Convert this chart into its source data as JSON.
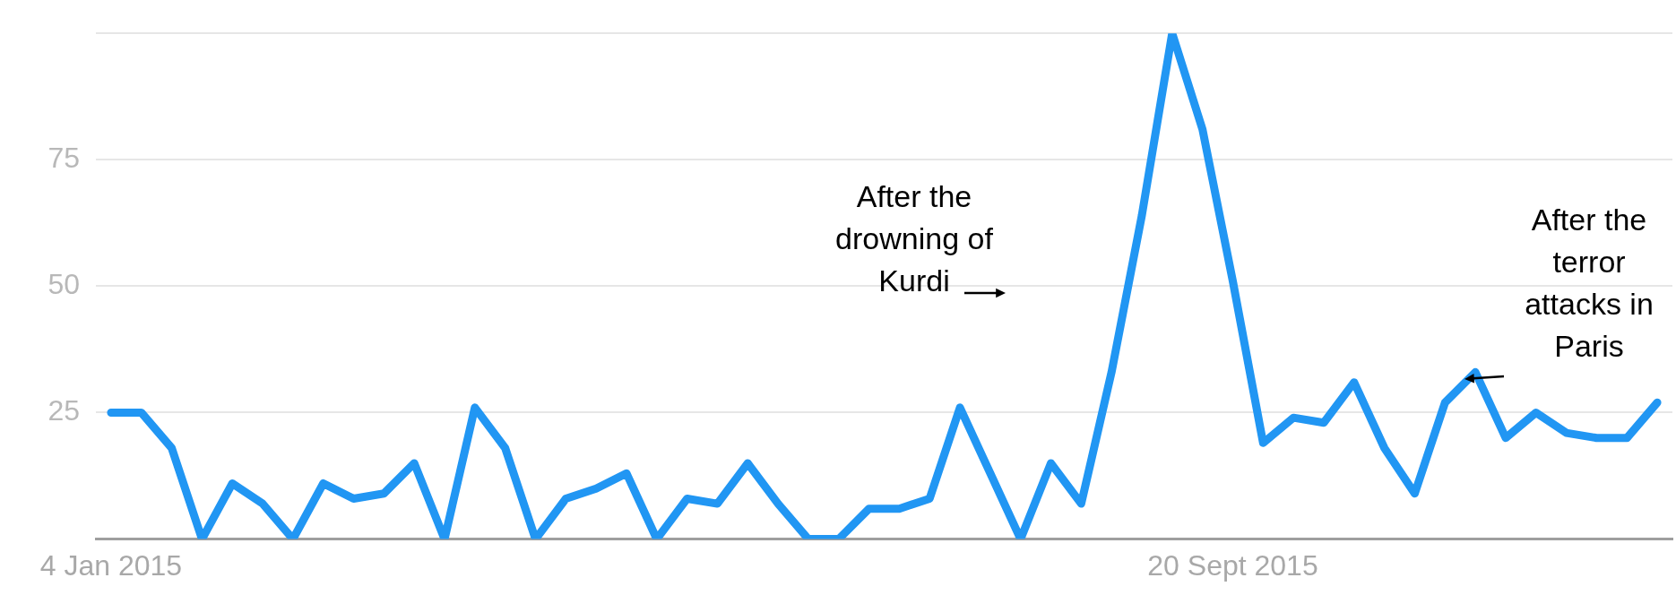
{
  "chart_data": {
    "type": "line",
    "categories": [
      "4 Jan 2015",
      null,
      null,
      null,
      null,
      null,
      null,
      null,
      null,
      null,
      null,
      null,
      null,
      null,
      null,
      null,
      null,
      null,
      null,
      null,
      null,
      null,
      null,
      null,
      null,
      null,
      null,
      null,
      null,
      null,
      null,
      null,
      null,
      null,
      null,
      null,
      null,
      "20 Sept 2015",
      null,
      null,
      null,
      null,
      null,
      null,
      null,
      null,
      null,
      null,
      null,
      null,
      null,
      null
    ],
    "values": [
      25,
      25,
      18,
      0,
      11,
      7,
      0,
      11,
      8,
      9,
      15,
      0,
      26,
      18,
      0,
      8,
      10,
      13,
      0,
      8,
      7,
      15,
      7,
      0,
      0,
      6,
      6,
      8,
      26,
      13,
      0,
      15,
      7,
      33,
      64,
      100,
      81,
      51,
      19,
      24,
      23,
      31,
      18,
      9,
      27,
      33,
      20,
      25,
      21,
      20,
      20,
      27
    ],
    "color": "#2196f3",
    "ylim": [
      0,
      100
    ],
    "yticks": [
      {
        "value": 0,
        "label": null
      },
      25,
      50,
      75,
      {
        "value": 100,
        "label": null
      }
    ],
    "grid": "y",
    "legend": false,
    "marker": "none",
    "line_style": "solid",
    "annotations": [
      "After the drowning of Kurdi",
      "After the terror attacks in Paris"
    ]
  }
}
